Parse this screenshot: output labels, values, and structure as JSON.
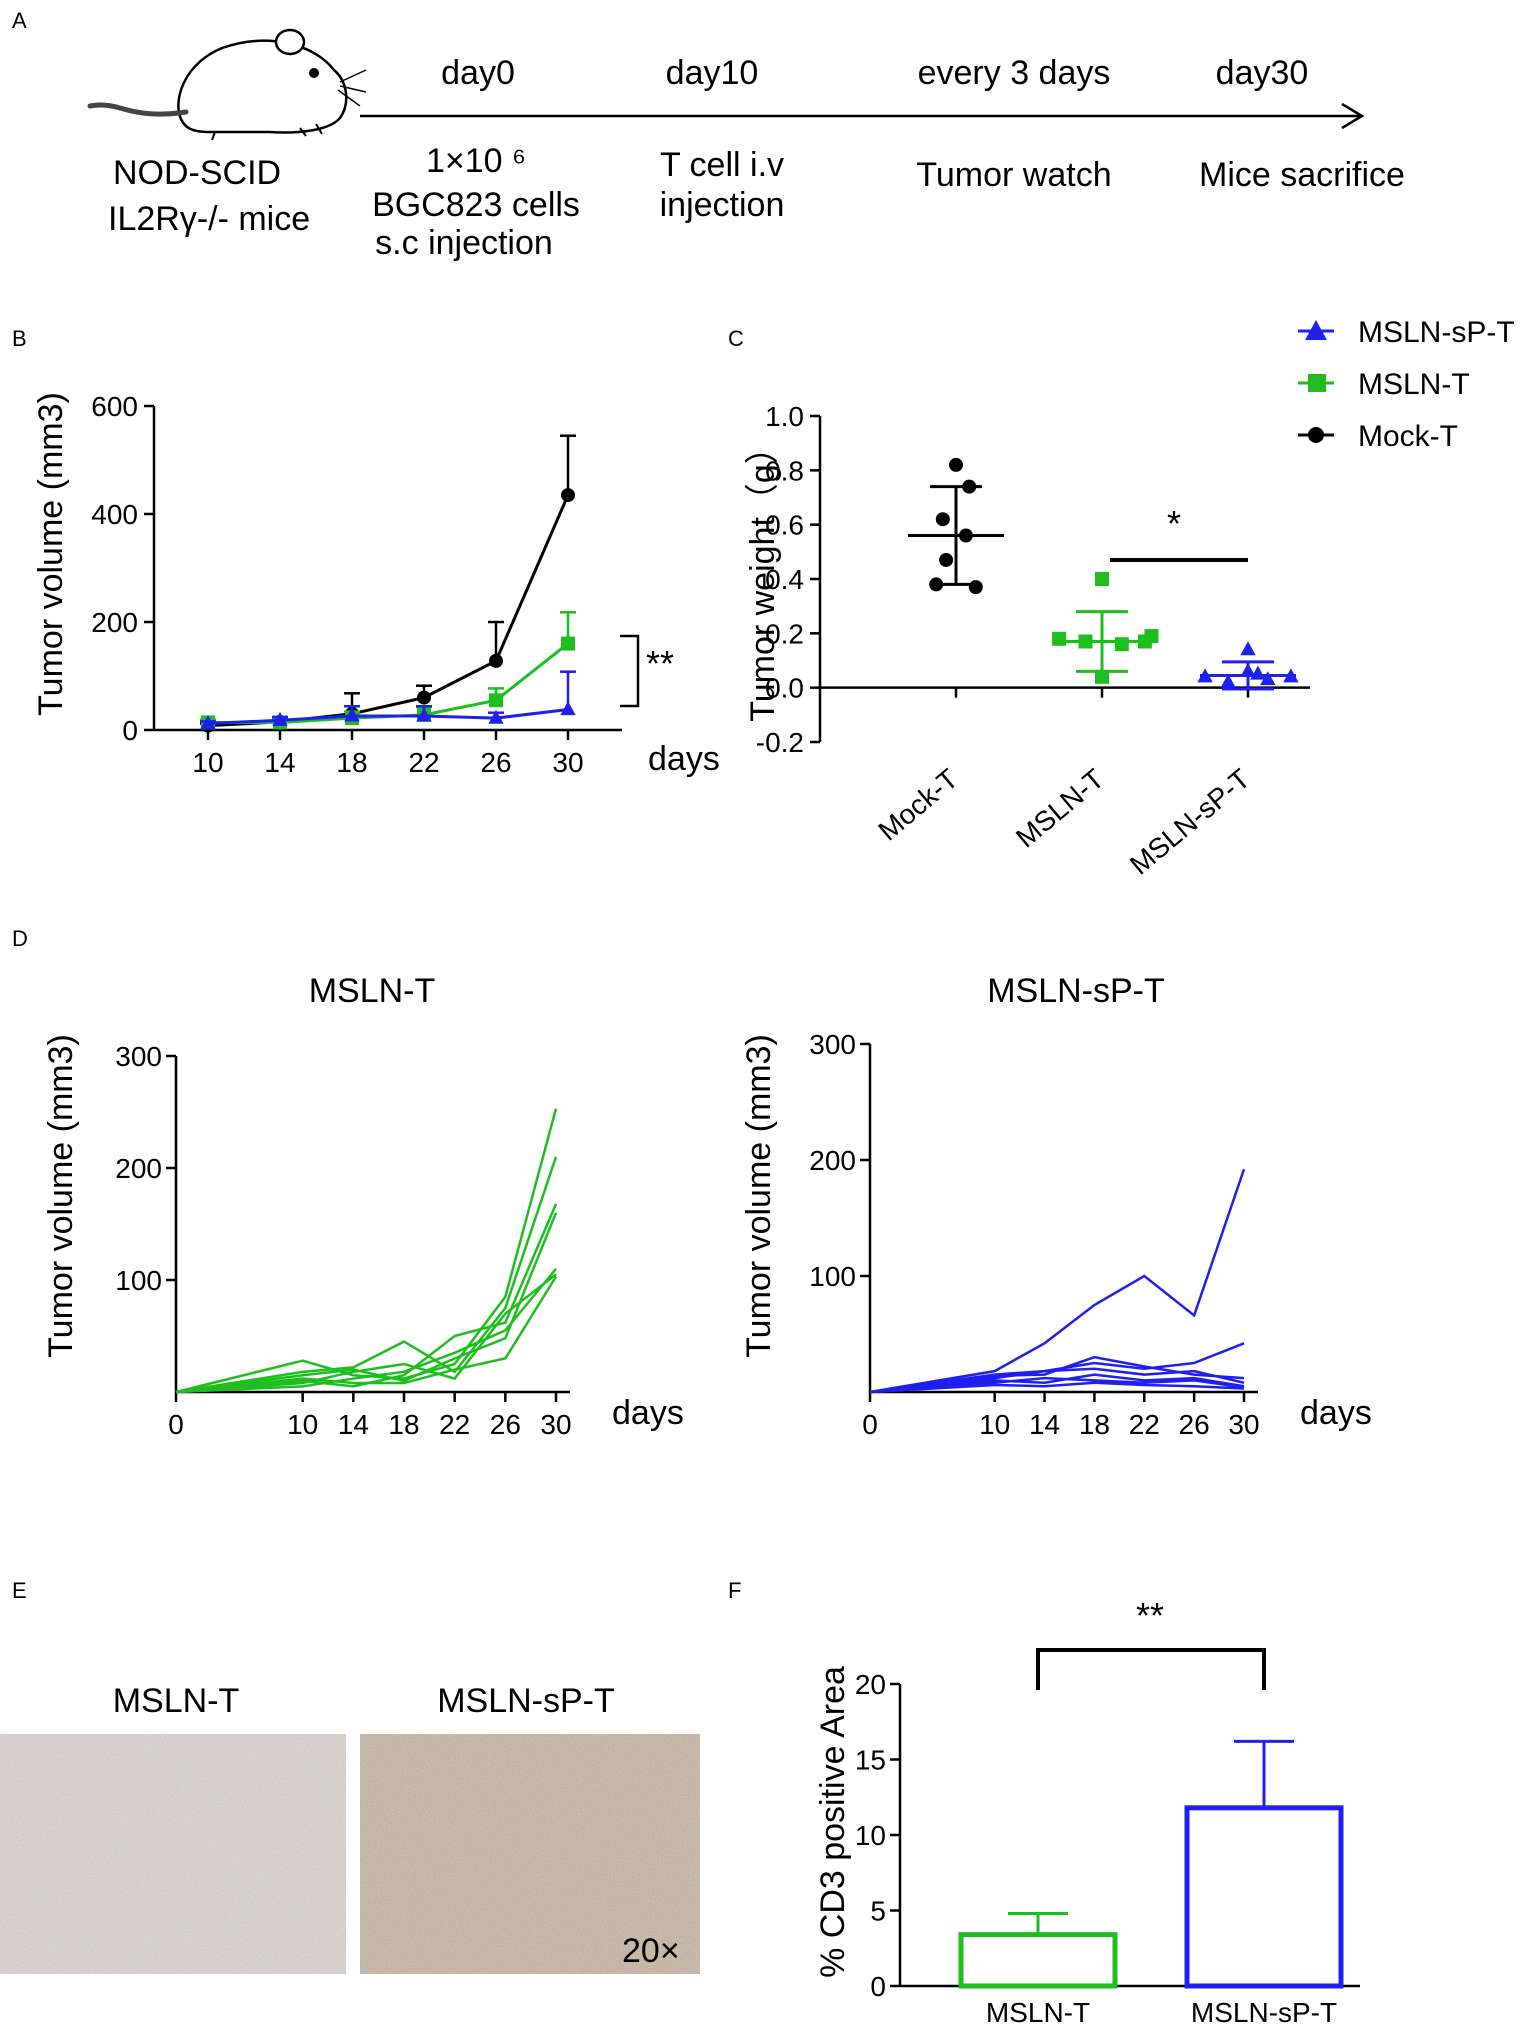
{
  "panels": {
    "A": "A",
    "B": "B",
    "C": "C",
    "D": "D",
    "E": "E",
    "F": "F"
  },
  "colors": {
    "mock": "#000000",
    "mslnt": "#1fbe1f",
    "mslnspt": "#1f1fee"
  },
  "timeline": {
    "mouse_label_line1": "NOD-SCID",
    "mouse_label_line2": "IL2Rγ-/- mice",
    "events": [
      {
        "day": "day0",
        "desc_lines": [
          "1×10 ⁶",
          "BGC823 cells",
          "s.c injection"
        ]
      },
      {
        "day": "day10",
        "desc_lines": [
          "T cell i.v",
          "injection"
        ]
      },
      {
        "day": "every 3 days",
        "desc_lines": [
          "Tumor watch"
        ]
      },
      {
        "day": "day30",
        "desc_lines": [
          "Mice sacrifice"
        ]
      }
    ]
  },
  "legend": {
    "items": [
      {
        "label": "MSLN-sP-T",
        "color": "#1f1fee",
        "marker": "triangle"
      },
      {
        "label": "MSLN-T",
        "color": "#1fbe1f",
        "marker": "square"
      },
      {
        "label": "Mock-T",
        "color": "#000000",
        "marker": "circle"
      }
    ]
  },
  "images": {
    "left_label": "MSLN-T",
    "right_label": "MSLN-sP-T",
    "magnification": "20×"
  },
  "chart_data": [
    {
      "id": "B",
      "type": "line",
      "title": "",
      "xlabel": "days",
      "ylabel": "Tumor volume (mm3)",
      "x": [
        10,
        14,
        18,
        22,
        26,
        30
      ],
      "xlim": [
        7,
        33
      ],
      "ylim": [
        0,
        600
      ],
      "yticks": [
        0,
        200,
        400,
        600
      ],
      "series": [
        {
          "name": "Mock-T",
          "color": "#000000",
          "marker": "circle",
          "values": [
            8,
            15,
            30,
            60,
            128,
            435
          ],
          "errors": [
            4,
            8,
            38,
            22,
            72,
            110
          ]
        },
        {
          "name": "MSLN-T",
          "color": "#1fbe1f",
          "marker": "square",
          "values": [
            14,
            14,
            22,
            28,
            55,
            160
          ],
          "errors": [
            5,
            6,
            12,
            15,
            22,
            58
          ]
        },
        {
          "name": "MSLN-sP-T",
          "color": "#1f1fee",
          "marker": "triangle",
          "values": [
            12,
            18,
            26,
            26,
            22,
            38
          ],
          "errors": [
            4,
            6,
            18,
            18,
            10,
            70
          ]
        }
      ],
      "annotation": "**"
    },
    {
      "id": "C",
      "type": "scatter",
      "xlabel": "",
      "ylabel": "Tumor weight（g）",
      "categories": [
        "Mock-T",
        "MSLN-T",
        "MSLN-sP-T"
      ],
      "ylim": [
        -0.2,
        1.0
      ],
      "yticks": [
        "1.0",
        "0.8",
        "0.6",
        "0.4",
        "0.2",
        "0.0",
        "-0.2"
      ],
      "groups": [
        {
          "name": "Mock-T",
          "color": "#000000",
          "marker": "circle",
          "mean": 0.56,
          "sd": 0.18,
          "points": [
            [
              0,
              0.82
            ],
            [
              0.04,
              0.74
            ],
            [
              -0.04,
              0.62
            ],
            [
              0.03,
              0.56
            ],
            [
              -0.03,
              0.47
            ],
            [
              -0.06,
              0.38
            ],
            [
              0.06,
              0.37
            ]
          ]
        },
        {
          "name": "MSLN-T",
          "color": "#1fbe1f",
          "marker": "square",
          "mean": 0.17,
          "sd": 0.11,
          "points": [
            [
              0,
              0.4
            ],
            [
              -0.13,
              0.18
            ],
            [
              -0.05,
              0.17
            ],
            [
              0.06,
              0.16
            ],
            [
              0.13,
              0.17
            ],
            [
              0.15,
              0.19
            ],
            [
              0,
              0.04
            ]
          ]
        },
        {
          "name": "MSLN-sP-T",
          "color": "#1f1fee",
          "marker": "triangle",
          "mean": 0.045,
          "sd": 0.05,
          "points": [
            [
              0,
              0.14
            ],
            [
              -0.13,
              0.04
            ],
            [
              -0.06,
              0.02
            ],
            [
              0.0,
              0.06
            ],
            [
              0.06,
              0.03
            ],
            [
              0.13,
              0.04
            ],
            [
              0.03,
              0.05
            ]
          ]
        }
      ],
      "annotation": "*"
    },
    {
      "id": "D-left",
      "type": "line",
      "title": "MSLN-T",
      "xlabel": "days",
      "ylabel": "Tumor volume (mm3)",
      "x": [
        0,
        10,
        14,
        18,
        22,
        26,
        30
      ],
      "xlim": [
        0,
        30
      ],
      "ylim": [
        0,
        300
      ],
      "yticks": [
        100,
        200,
        300
      ],
      "color": "#1fbe1f",
      "series": [
        {
          "name": "mouse 1",
          "values": [
            0,
            28,
            15,
            12,
            25,
            85,
            253
          ]
        },
        {
          "name": "mouse 2",
          "values": [
            0,
            18,
            22,
            45,
            18,
            75,
            210
          ]
        },
        {
          "name": "mouse 3",
          "values": [
            0,
            10,
            5,
            15,
            50,
            62,
            168
          ]
        },
        {
          "name": "mouse 4",
          "values": [
            0,
            15,
            20,
            10,
            30,
            48,
            160
          ]
        },
        {
          "name": "mouse 5",
          "values": [
            0,
            5,
            12,
            18,
            35,
            55,
            110
          ]
        },
        {
          "name": "mouse 6",
          "values": [
            0,
            12,
            8,
            8,
            20,
            30,
            103
          ]
        },
        {
          "name": "mouse 7",
          "values": [
            0,
            8,
            18,
            25,
            12,
            70,
            105
          ]
        }
      ]
    },
    {
      "id": "D-right",
      "type": "line",
      "title": "MSLN-sP-T",
      "xlabel": "days",
      "ylabel": "Tumor volume (mm3)",
      "x": [
        0,
        10,
        14,
        18,
        22,
        26,
        30
      ],
      "xlim": [
        0,
        30
      ],
      "ylim": [
        0,
        300
      ],
      "yticks": [
        100,
        200,
        300
      ],
      "color": "#1f1fee",
      "series": [
        {
          "name": "mouse 1",
          "values": [
            0,
            18,
            42,
            75,
            100,
            66,
            192
          ]
        },
        {
          "name": "mouse 2",
          "values": [
            0,
            15,
            18,
            25,
            20,
            25,
            42
          ]
        },
        {
          "name": "mouse 3",
          "values": [
            0,
            14,
            15,
            30,
            22,
            15,
            12
          ]
        },
        {
          "name": "mouse 4",
          "values": [
            0,
            12,
            18,
            20,
            15,
            18,
            8
          ]
        },
        {
          "name": "mouse 5",
          "values": [
            0,
            10,
            8,
            15,
            10,
            12,
            5
          ]
        },
        {
          "name": "mouse 6",
          "values": [
            0,
            8,
            12,
            10,
            8,
            10,
            4
          ]
        },
        {
          "name": "mouse 7",
          "values": [
            0,
            6,
            5,
            8,
            6,
            5,
            3
          ]
        }
      ]
    },
    {
      "id": "F",
      "type": "bar",
      "xlabel": "",
      "ylabel": "% CD3 positive Area",
      "categories": [
        "MSLN-T",
        "MSLN-sP-T"
      ],
      "values": [
        3.4,
        11.8
      ],
      "errors": [
        1.4,
        4.4
      ],
      "colors": [
        "#1fbe1f",
        "#1f1fee"
      ],
      "ylim": [
        0,
        20
      ],
      "yticks": [
        0,
        5,
        10,
        15,
        20
      ],
      "annotation": "**"
    }
  ]
}
